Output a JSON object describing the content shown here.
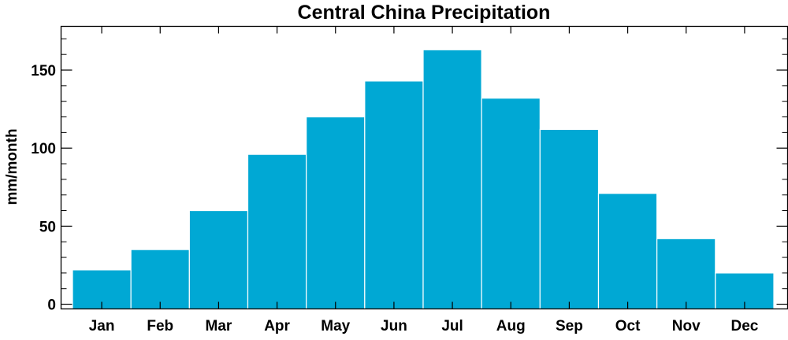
{
  "chart_data": {
    "type": "bar",
    "title": "Central China Precipitation",
    "xlabel": "",
    "ylabel": "mm/month",
    "categories": [
      "Jan",
      "Feb",
      "Mar",
      "Apr",
      "May",
      "Jun",
      "Jul",
      "Aug",
      "Sep",
      "Oct",
      "Nov",
      "Dec"
    ],
    "values": [
      22,
      35,
      60,
      96,
      120,
      143,
      163,
      132,
      112,
      71,
      42,
      20
    ],
    "ylim": [
      -3,
      178
    ],
    "yticks": [
      0,
      50,
      100,
      150
    ],
    "ytick_labels": [
      "0",
      "50",
      "100",
      "150"
    ],
    "bar_color": "#00A8D4",
    "bar_edge_color": "#ffffff",
    "grid": false,
    "legend": "none"
  }
}
